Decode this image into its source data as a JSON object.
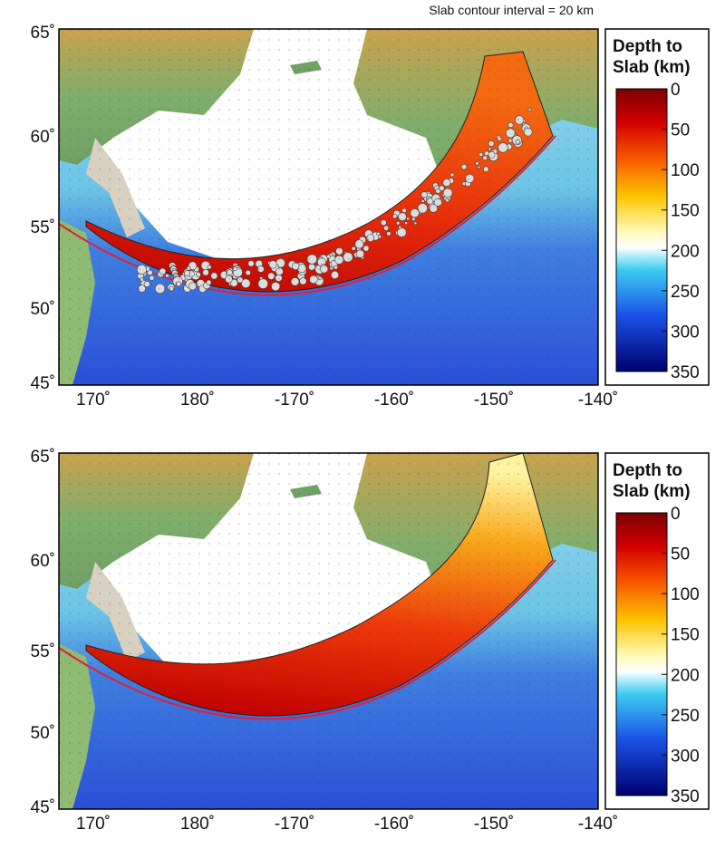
{
  "annotation": "Slab contour interval = 20 km",
  "panels": [
    {
      "lat_ticks": [
        "65˚",
        "60˚",
        "55˚",
        "50˚",
        "45˚"
      ],
      "lon_ticks": [
        "170˚",
        "180˚",
        "-170˚",
        "-160˚",
        "-150˚",
        "-140˚"
      ],
      "colorbar": {
        "title": [
          "Depth to",
          "Slab (km)"
        ],
        "ticks": [
          0,
          50,
          100,
          150,
          200,
          250,
          300,
          350
        ]
      }
    },
    {
      "lat_ticks": [
        "65˚",
        "60˚",
        "55˚",
        "50˚",
        "45˚"
      ],
      "lon_ticks": [
        "170˚",
        "180˚",
        "-170˚",
        "-160˚",
        "-150˚",
        "-140˚"
      ],
      "colorbar": {
        "title": [
          "Depth to",
          "Slab (km)"
        ],
        "ticks": [
          0,
          50,
          100,
          150,
          200,
          250,
          300,
          350
        ]
      }
    }
  ]
}
